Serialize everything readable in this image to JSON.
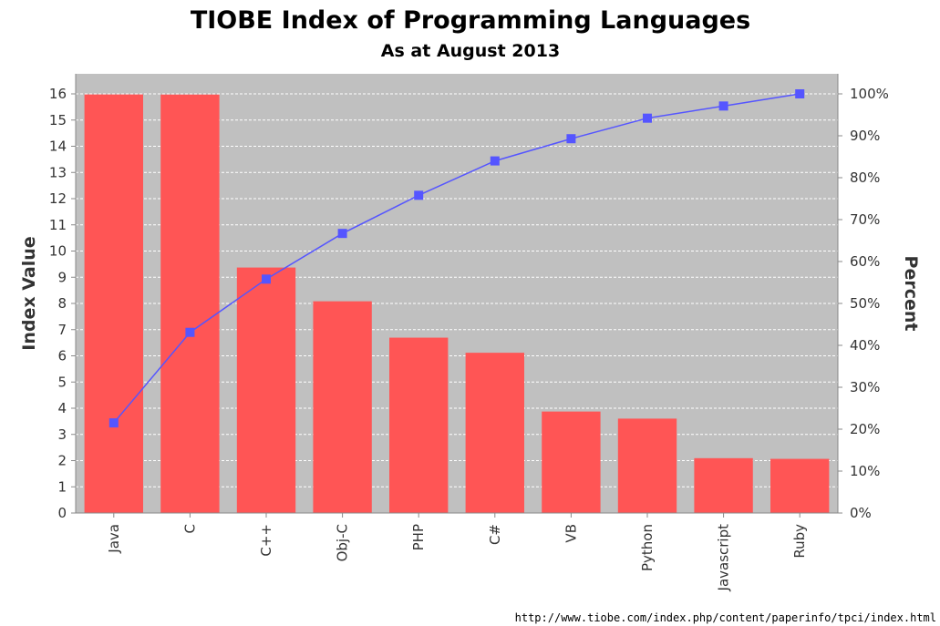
{
  "chart_data": {
    "type": "bar",
    "title": "TIOBE Index of Programming Languages",
    "subtitle": "As at August 2013",
    "ylabel": "Index Value",
    "y2label": "Percent",
    "categories": [
      "Java",
      "C",
      "C++",
      "Obj-C",
      "PHP",
      "C#",
      "VB",
      "Python",
      "Javascript",
      "Ruby"
    ],
    "series": [
      {
        "type": "bar",
        "values": [
          15.978,
          15.974,
          9.371,
          8.082,
          6.694,
          6.117,
          3.873,
          3.603,
          2.093,
          2.067
        ]
      },
      {
        "type": "line",
        "axis": "right",
        "values": [
          21.5,
          43.1,
          55.8,
          66.7,
          75.8,
          84.0,
          89.3,
          94.2,
          97.1,
          100.0
        ]
      }
    ],
    "ylim": [
      0,
      16
    ],
    "y2lim": [
      0,
      100
    ],
    "yticks": [
      "0",
      "1",
      "2",
      "3",
      "4",
      "5",
      "6",
      "7",
      "8",
      "9",
      "10",
      "11",
      "12",
      "13",
      "14",
      "15",
      "16"
    ],
    "y2ticks": [
      "0%",
      "10%",
      "20%",
      "30%",
      "40%",
      "50%",
      "60%",
      "70%",
      "80%",
      "90%",
      "100%"
    ],
    "grid": true,
    "colors": {
      "bar": "#ff5555",
      "line": "#5555ff",
      "plot_bg": "#c0c0c0",
      "grid": "#ffffff"
    }
  },
  "source_url": "http://www.tiobe.com/index.php/content/paperinfo/tpci/index.html"
}
